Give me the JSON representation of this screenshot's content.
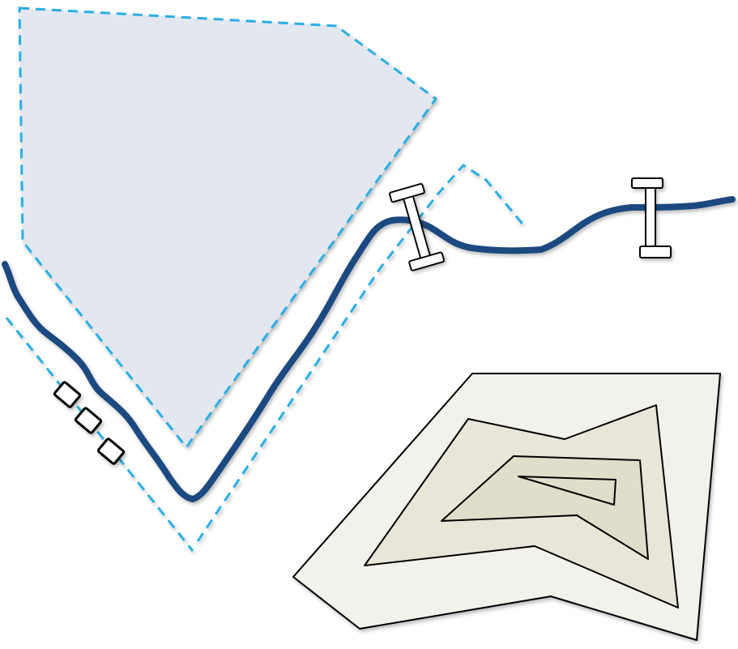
{
  "map": {
    "background": "#ffffff",
    "colors": {
      "area_fill": "#e3e7f0",
      "boundary_dash": "#29aee5",
      "river": "#1f4a80",
      "contour_stroke": "#000000",
      "contour_level_1": "#f2f1ea",
      "contour_level_2": "#e8e6d8",
      "contour_level_3": "#e0ddca",
      "contour_level_4": "#e0ddca",
      "bridge_fill": "#ffffff",
      "building_fill": "#ffffff"
    },
    "features": {
      "shaded_area": "polygon-area",
      "boundary_lines": "dashed-boundary",
      "river": "river-line",
      "bridges": 2,
      "buildings": 3,
      "contour_levels": 4
    }
  }
}
